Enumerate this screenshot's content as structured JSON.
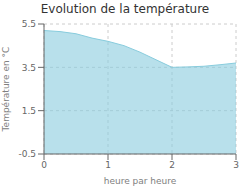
{
  "chart_data": {
    "type": "area",
    "title": "Evolution de la température",
    "xlabel": "heure par heure",
    "ylabel": "Température en °C",
    "x": [
      0,
      0.25,
      0.5,
      0.75,
      1.0,
      1.25,
      1.5,
      1.75,
      2.0,
      2.25,
      2.5,
      2.75,
      3.0
    ],
    "values": [
      5.2,
      5.15,
      5.05,
      4.85,
      4.7,
      4.5,
      4.2,
      3.85,
      3.5,
      3.52,
      3.55,
      3.62,
      3.7
    ],
    "color": "#88ccdd",
    "xlim": [
      0,
      3
    ],
    "ylim": [
      -0.5,
      5.5
    ],
    "xticks": [
      0,
      1,
      2,
      3
    ],
    "yticks": [
      -0.5,
      1.5,
      3.5,
      5.5
    ],
    "grid": true
  }
}
